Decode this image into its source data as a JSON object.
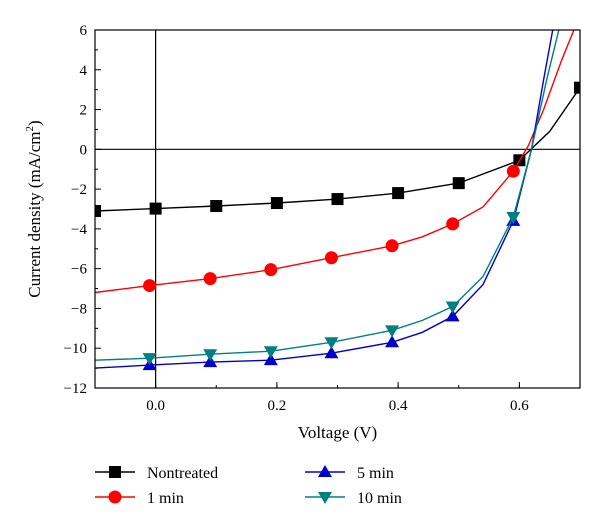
{
  "chart_data": {
    "type": "line",
    "xlabel": "Voltage (V)",
    "ylabel_main": "Current density (mA/cm",
    "ylabel_sup": "2",
    "ylabel_close": ")",
    "xlim": [
      -0.1,
      0.7
    ],
    "ylim": [
      -12,
      6
    ],
    "xticks": [
      0.0,
      0.2,
      0.4,
      0.6
    ],
    "xtick_labels": [
      "0.0",
      "0.2",
      "0.4",
      "0.6"
    ],
    "yticks": [
      -12,
      -10,
      -8,
      -6,
      -4,
      -2,
      0,
      2,
      4,
      6
    ],
    "ytick_labels": [
      "−12",
      "−10",
      "−8",
      "−6",
      "−4",
      "−2",
      "0",
      "2",
      "4",
      "6"
    ],
    "legend_placement": "bottom",
    "series": [
      {
        "name": "Nontreated",
        "color": "#000000",
        "marker": "square",
        "curve": [
          [
            -0.1,
            -3.1
          ],
          [
            0.0,
            -2.98
          ],
          [
            0.1,
            -2.85
          ],
          [
            0.2,
            -2.7
          ],
          [
            0.3,
            -2.5
          ],
          [
            0.4,
            -2.2
          ],
          [
            0.5,
            -1.7
          ],
          [
            0.6,
            -0.55
          ],
          [
            0.65,
            0.9
          ],
          [
            0.7,
            3.1
          ]
        ],
        "markers": [
          [
            -0.1,
            -3.1
          ],
          [
            0.0,
            -2.98
          ],
          [
            0.1,
            -2.85
          ],
          [
            0.2,
            -2.7
          ],
          [
            0.3,
            -2.5
          ],
          [
            0.4,
            -2.2
          ],
          [
            0.5,
            -1.7
          ],
          [
            0.6,
            -0.55
          ],
          [
            0.7,
            3.1
          ]
        ]
      },
      {
        "name": "1 min",
        "color": "#ff0000",
        "marker": "circle",
        "curve": [
          [
            -0.1,
            -7.2
          ],
          [
            -0.01,
            -6.85
          ],
          [
            0.09,
            -6.5
          ],
          [
            0.19,
            -6.05
          ],
          [
            0.29,
            -5.45
          ],
          [
            0.39,
            -4.85
          ],
          [
            0.44,
            -4.4
          ],
          [
            0.49,
            -3.75
          ],
          [
            0.54,
            -2.9
          ],
          [
            0.59,
            -1.1
          ],
          [
            0.615,
            0.2
          ],
          [
            0.64,
            2.0
          ],
          [
            0.67,
            4.5
          ],
          [
            0.69,
            6.0
          ]
        ],
        "markers": [
          [
            -0.01,
            -6.85
          ],
          [
            0.09,
            -6.5
          ],
          [
            0.19,
            -6.05
          ],
          [
            0.29,
            -5.45
          ],
          [
            0.39,
            -4.85
          ],
          [
            0.49,
            -3.75
          ],
          [
            0.59,
            -1.1
          ]
        ]
      },
      {
        "name": "5 min",
        "color": "#0000cc",
        "marker": "triangle-up",
        "curve": [
          [
            -0.1,
            -11.0
          ],
          [
            -0.01,
            -10.85
          ],
          [
            0.09,
            -10.7
          ],
          [
            0.19,
            -10.6
          ],
          [
            0.29,
            -10.25
          ],
          [
            0.39,
            -9.7
          ],
          [
            0.44,
            -9.2
          ],
          [
            0.49,
            -8.4
          ],
          [
            0.54,
            -6.8
          ],
          [
            0.59,
            -3.6
          ],
          [
            0.62,
            0.0
          ],
          [
            0.64,
            3.5
          ],
          [
            0.655,
            6.0
          ]
        ],
        "markers": [
          [
            -0.01,
            -10.85
          ],
          [
            0.09,
            -10.7
          ],
          [
            0.19,
            -10.6
          ],
          [
            0.29,
            -10.25
          ],
          [
            0.39,
            -9.7
          ],
          [
            0.49,
            -8.4
          ],
          [
            0.59,
            -3.6
          ]
        ]
      },
      {
        "name": "10 min",
        "color": "#008080",
        "marker": "triangle-down",
        "curve": [
          [
            -0.1,
            -10.6
          ],
          [
            -0.01,
            -10.5
          ],
          [
            0.09,
            -10.3
          ],
          [
            0.19,
            -10.15
          ],
          [
            0.29,
            -9.7
          ],
          [
            0.39,
            -9.1
          ],
          [
            0.44,
            -8.6
          ],
          [
            0.49,
            -7.9
          ],
          [
            0.54,
            -6.4
          ],
          [
            0.59,
            -3.4
          ],
          [
            0.62,
            0.0
          ],
          [
            0.645,
            3.5
          ],
          [
            0.665,
            6.0
          ]
        ],
        "markers": [
          [
            -0.01,
            -10.5
          ],
          [
            0.09,
            -10.3
          ],
          [
            0.19,
            -10.15
          ],
          [
            0.29,
            -9.7
          ],
          [
            0.39,
            -9.1
          ],
          [
            0.49,
            -7.9
          ],
          [
            0.59,
            -3.4
          ]
        ]
      }
    ]
  }
}
